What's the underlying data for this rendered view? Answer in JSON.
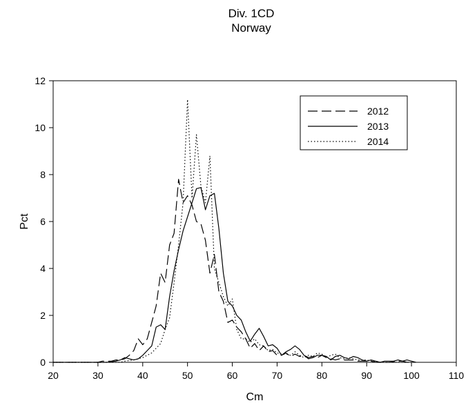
{
  "chart_data": {
    "type": "line",
    "title": "Div. 1CD",
    "subtitle": "Norway",
    "xlabel": "Cm",
    "ylabel": "Pct",
    "xlim": [
      20,
      110
    ],
    "ylim": [
      0,
      12
    ],
    "xticks": [
      20,
      30,
      40,
      50,
      60,
      70,
      80,
      90,
      100,
      110
    ],
    "yticks": [
      0,
      2,
      4,
      6,
      8,
      10,
      12
    ],
    "grid": false,
    "legend_position": "top-right",
    "series": [
      {
        "name": "2012",
        "style": "dashed",
        "points": [
          [
            20,
            0
          ],
          [
            25,
            0
          ],
          [
            30,
            0
          ],
          [
            31,
            0.05
          ],
          [
            33,
            0.05
          ],
          [
            34,
            0.1
          ],
          [
            35,
            0.1
          ],
          [
            36,
            0.15
          ],
          [
            37,
            0.3
          ],
          [
            38,
            0.5
          ],
          [
            39,
            1.0
          ],
          [
            40,
            0.75
          ],
          [
            41,
            1.0
          ],
          [
            42,
            1.7
          ],
          [
            43,
            2.4
          ],
          [
            44,
            3.8
          ],
          [
            45,
            3.4
          ],
          [
            46,
            5.0
          ],
          [
            47,
            5.5
          ],
          [
            48,
            7.8
          ],
          [
            49,
            6.8
          ],
          [
            50,
            7.1
          ],
          [
            51,
            6.7
          ],
          [
            52,
            6.0
          ],
          [
            53,
            5.9
          ],
          [
            54,
            5.2
          ],
          [
            55,
            3.8
          ],
          [
            56,
            4.6
          ],
          [
            57,
            3.0
          ],
          [
            58,
            2.6
          ],
          [
            59,
            1.7
          ],
          [
            60,
            1.8
          ],
          [
            61,
            1.5
          ],
          [
            62,
            1.3
          ],
          [
            63,
            1.0
          ],
          [
            64,
            0.6
          ],
          [
            65,
            0.8
          ],
          [
            66,
            0.5
          ],
          [
            67,
            0.7
          ],
          [
            68,
            0.45
          ],
          [
            69,
            0.5
          ],
          [
            70,
            0.3
          ],
          [
            71,
            0.3
          ],
          [
            72,
            0.4
          ],
          [
            73,
            0.25
          ],
          [
            74,
            0.35
          ],
          [
            75,
            0.25
          ],
          [
            76,
            0.3
          ],
          [
            77,
            0.2
          ],
          [
            78,
            0.25
          ],
          [
            79,
            0.2
          ],
          [
            80,
            0.3
          ],
          [
            81,
            0.2
          ],
          [
            82,
            0.15
          ],
          [
            83,
            0.1
          ],
          [
            84,
            0.15
          ],
          [
            85,
            0.1
          ],
          [
            86,
            0.1
          ],
          [
            87,
            0.1
          ],
          [
            88,
            0.05
          ],
          [
            89,
            0.05
          ],
          [
            90,
            0.05
          ],
          [
            91,
            0.05
          ],
          [
            92,
            0
          ],
          [
            95,
            0
          ],
          [
            97,
            0.05
          ],
          [
            98,
            0.05
          ],
          [
            99,
            0
          ],
          [
            100,
            0
          ]
        ]
      },
      {
        "name": "2013",
        "style": "solid",
        "points": [
          [
            20,
            0
          ],
          [
            25,
            0
          ],
          [
            30,
            0
          ],
          [
            32,
            0
          ],
          [
            34,
            0.05
          ],
          [
            35,
            0.1
          ],
          [
            36,
            0.2
          ],
          [
            37,
            0.15
          ],
          [
            38,
            0.1
          ],
          [
            39,
            0.15
          ],
          [
            40,
            0.3
          ],
          [
            41,
            0.5
          ],
          [
            42,
            0.7
          ],
          [
            43,
            1.5
          ],
          [
            44,
            1.6
          ],
          [
            45,
            1.4
          ],
          [
            46,
            2.8
          ],
          [
            47,
            3.9
          ],
          [
            48,
            4.8
          ],
          [
            49,
            5.6
          ],
          [
            50,
            6.2
          ],
          [
            51,
            6.8
          ],
          [
            52,
            7.4
          ],
          [
            53,
            7.45
          ],
          [
            54,
            6.5
          ],
          [
            55,
            7.1
          ],
          [
            56,
            7.2
          ],
          [
            57,
            5.7
          ],
          [
            58,
            3.8
          ],
          [
            59,
            2.6
          ],
          [
            60,
            2.4
          ],
          [
            61,
            2.0
          ],
          [
            62,
            1.8
          ],
          [
            63,
            1.3
          ],
          [
            64,
            0.9
          ],
          [
            65,
            1.2
          ],
          [
            66,
            1.45
          ],
          [
            67,
            1.1
          ],
          [
            68,
            0.7
          ],
          [
            69,
            0.75
          ],
          [
            70,
            0.6
          ],
          [
            71,
            0.3
          ],
          [
            72,
            0.45
          ],
          [
            73,
            0.55
          ],
          [
            74,
            0.7
          ],
          [
            75,
            0.55
          ],
          [
            76,
            0.3
          ],
          [
            77,
            0.15
          ],
          [
            78,
            0.2
          ],
          [
            79,
            0.3
          ],
          [
            80,
            0.3
          ],
          [
            81,
            0.25
          ],
          [
            82,
            0.1
          ],
          [
            83,
            0.25
          ],
          [
            84,
            0.3
          ],
          [
            85,
            0.2
          ],
          [
            86,
            0.15
          ],
          [
            87,
            0.25
          ],
          [
            88,
            0.2
          ],
          [
            89,
            0.1
          ],
          [
            90,
            0.05
          ],
          [
            91,
            0.1
          ],
          [
            92,
            0.05
          ],
          [
            93,
            0
          ],
          [
            94,
            0.05
          ],
          [
            95,
            0.05
          ],
          [
            96,
            0.05
          ],
          [
            97,
            0.1
          ],
          [
            98,
            0.05
          ],
          [
            99,
            0.1
          ],
          [
            100,
            0.05
          ],
          [
            101,
            0
          ]
        ]
      },
      {
        "name": "2014",
        "style": "dotted",
        "points": [
          [
            20,
            0
          ],
          [
            25,
            0
          ],
          [
            30,
            0
          ],
          [
            35,
            0
          ],
          [
            36,
            0.05
          ],
          [
            38,
            0.1
          ],
          [
            40,
            0.2
          ],
          [
            41,
            0.3
          ],
          [
            42,
            0.4
          ],
          [
            43,
            0.6
          ],
          [
            44,
            0.8
          ],
          [
            45,
            1.4
          ],
          [
            46,
            1.9
          ],
          [
            47,
            3.4
          ],
          [
            48,
            5.0
          ],
          [
            49,
            6.8
          ],
          [
            50,
            11.2
          ],
          [
            51,
            7.0
          ],
          [
            52,
            9.7
          ],
          [
            53,
            7.5
          ],
          [
            54,
            6.8
          ],
          [
            55,
            8.8
          ],
          [
            56,
            4.0
          ],
          [
            57,
            3.4
          ],
          [
            58,
            2.8
          ],
          [
            59,
            2.4
          ],
          [
            60,
            2.7
          ],
          [
            61,
            1.4
          ],
          [
            62,
            1.0
          ],
          [
            63,
            1.0
          ],
          [
            64,
            0.85
          ],
          [
            65,
            1.0
          ],
          [
            66,
            0.75
          ],
          [
            67,
            0.7
          ],
          [
            68,
            0.5
          ],
          [
            69,
            0.55
          ],
          [
            70,
            0.4
          ],
          [
            71,
            0.35
          ],
          [
            72,
            0.35
          ],
          [
            73,
            0.3
          ],
          [
            74,
            0.45
          ],
          [
            75,
            0.3
          ],
          [
            76,
            0.2
          ],
          [
            77,
            0.3
          ],
          [
            78,
            0.25
          ],
          [
            79,
            0.4
          ],
          [
            80,
            0.35
          ],
          [
            81,
            0.2
          ],
          [
            82,
            0.3
          ],
          [
            83,
            0.35
          ],
          [
            84,
            0.2
          ],
          [
            85,
            0.15
          ],
          [
            86,
            0.2
          ],
          [
            87,
            0.15
          ],
          [
            88,
            0.1
          ],
          [
            89,
            0.1
          ],
          [
            90,
            0.1
          ],
          [
            91,
            0.05
          ],
          [
            92,
            0.05
          ],
          [
            93,
            0
          ],
          [
            95,
            0
          ],
          [
            100,
            0
          ]
        ]
      }
    ]
  }
}
